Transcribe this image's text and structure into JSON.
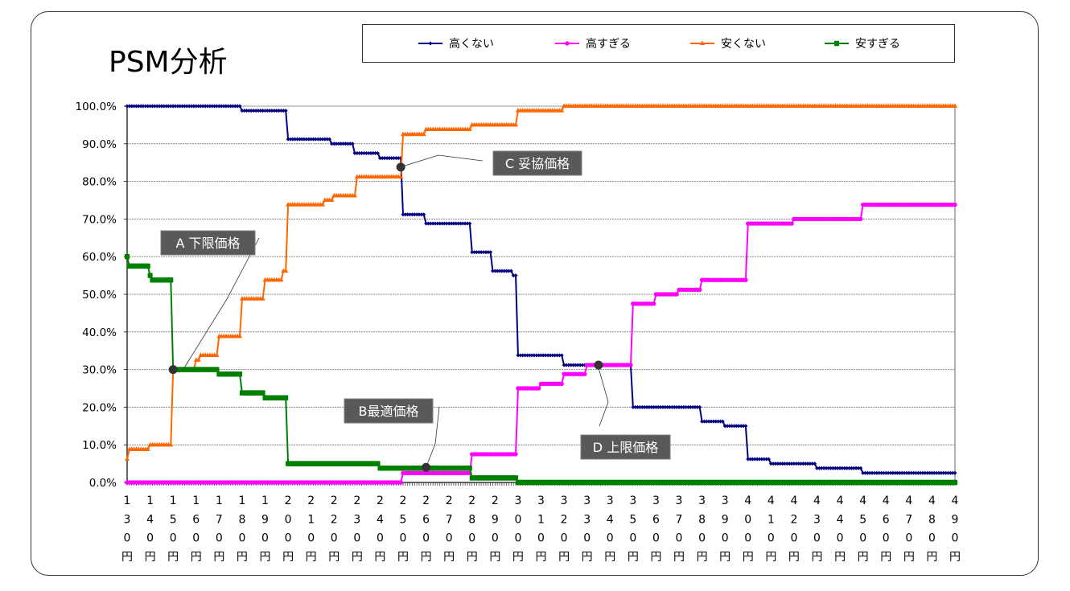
{
  "chart_data": {
    "type": "line",
    "title": "PSM分析",
    "xlabel": "",
    "ylabel": "",
    "x_unit": "円",
    "xlim": [
      130,
      490
    ],
    "ylim": [
      0,
      100
    ],
    "yticks": [
      "0.0%",
      "10.0%",
      "20.0%",
      "30.0%",
      "40.0%",
      "50.0%",
      "60.0%",
      "70.0%",
      "80.0%",
      "90.0%",
      "100.0%"
    ],
    "ytick_values": [
      0,
      10,
      20,
      30,
      40,
      50,
      60,
      70,
      80,
      90,
      100
    ],
    "xticks": [
      130,
      140,
      150,
      160,
      170,
      180,
      190,
      200,
      210,
      220,
      230,
      240,
      250,
      260,
      270,
      280,
      290,
      300,
      310,
      320,
      330,
      340,
      350,
      360,
      370,
      380,
      390,
      400,
      410,
      420,
      430,
      440,
      450,
      460,
      470,
      480,
      490
    ],
    "grid": true,
    "legend_position": "top",
    "series": [
      {
        "name": "高くない",
        "color": "#000080",
        "marker": "diamond",
        "steps": [
          [
            130,
            100
          ],
          [
            180,
            98.8
          ],
          [
            200,
            91.2
          ],
          [
            219,
            90
          ],
          [
            229,
            87.5
          ],
          [
            240,
            86.2
          ],
          [
            250,
            71.2
          ],
          [
            260,
            68.8
          ],
          [
            280,
            61.2
          ],
          [
            289,
            56.2
          ],
          [
            298,
            55
          ],
          [
            300,
            33.8
          ],
          [
            320,
            31.2
          ],
          [
            350,
            20
          ],
          [
            380,
            16.2
          ],
          [
            390,
            15
          ],
          [
            400,
            6.2
          ],
          [
            410,
            5
          ],
          [
            430,
            3.8
          ],
          [
            450,
            2.5
          ]
        ]
      },
      {
        "name": "高すぎる",
        "color": "#FF00FF",
        "marker": "circle",
        "steps": [
          [
            130,
            0
          ],
          [
            250,
            2.5
          ],
          [
            280,
            7.5
          ],
          [
            300,
            25
          ],
          [
            310,
            26.2
          ],
          [
            320,
            28.8
          ],
          [
            330,
            31.2
          ],
          [
            350,
            47.5
          ],
          [
            360,
            50
          ],
          [
            370,
            51.2
          ],
          [
            380,
            53.8
          ],
          [
            400,
            68.8
          ],
          [
            420,
            70
          ],
          [
            450,
            73.8
          ]
        ]
      },
      {
        "name": "安くない",
        "color": "#FF6600",
        "marker": "triangle",
        "steps": [
          [
            130,
            6.2
          ],
          [
            131,
            8.8
          ],
          [
            140,
            10
          ],
          [
            150,
            30
          ],
          [
            160,
            32.5
          ],
          [
            162,
            33.8
          ],
          [
            170,
            38.8
          ],
          [
            180,
            48.8
          ],
          [
            190,
            53.8
          ],
          [
            198,
            56.2
          ],
          [
            200,
            73.8
          ],
          [
            216,
            75
          ],
          [
            220,
            76.2
          ],
          [
            230,
            81.2
          ],
          [
            250,
            92.5
          ],
          [
            260,
            93.8
          ],
          [
            280,
            95
          ],
          [
            300,
            98.8
          ],
          [
            320,
            100
          ]
        ]
      },
      {
        "name": "安すぎる",
        "color": "#008000",
        "marker": "square",
        "steps": [
          [
            130,
            60
          ],
          [
            131,
            57.5
          ],
          [
            140,
            55
          ],
          [
            141,
            53.8
          ],
          [
            150,
            30
          ],
          [
            170,
            28.8
          ],
          [
            180,
            23.8
          ],
          [
            190,
            22.5
          ],
          [
            200,
            5
          ],
          [
            240,
            3.8
          ],
          [
            280,
            1.2
          ],
          [
            300,
            0
          ]
        ]
      }
    ],
    "annotations": [
      {
        "label": "A 下限価格",
        "x": 150,
        "y": 30
      },
      {
        "label": "B最適価格",
        "x": 260,
        "y": 4
      },
      {
        "label": "C 妥協価格",
        "x": 249,
        "y": 83.8
      },
      {
        "label": "D 上限価格",
        "x": 335,
        "y": 31.2
      }
    ]
  }
}
